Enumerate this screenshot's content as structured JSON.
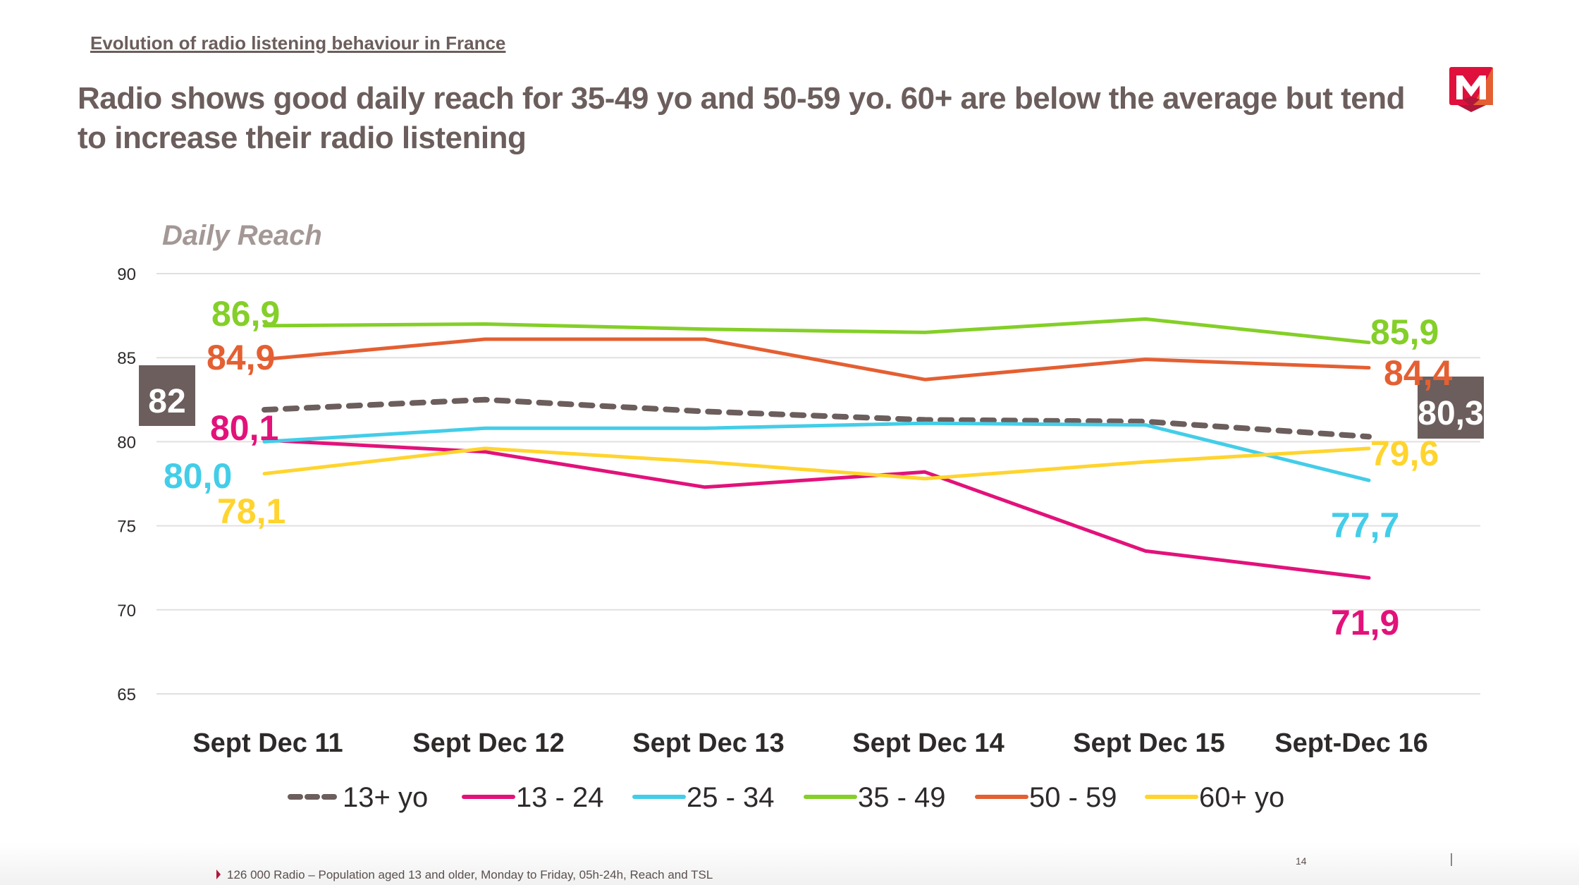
{
  "header": {
    "subtitle": "Evolution of radio listening behaviour in France",
    "title": "Radio shows good daily reach for 35-49 yo and 50-59 yo. 60+ are below the average but tend to increase their radio listening",
    "logo": "m-brand-logo-icon"
  },
  "colors": {
    "text": "#6b5e5c",
    "grid": "#e3dfdf",
    "box": "#6b5e5c",
    "logo_red": "#e0103c",
    "logo_dark_red": "#b0173a",
    "logo_orange": "#e45f32"
  },
  "chart_data": {
    "type": "line",
    "title": "Daily Reach",
    "xlabel": "",
    "ylabel": "Daily Reach",
    "ylim": [
      65,
      90
    ],
    "yticks": [
      65,
      70,
      75,
      80,
      85,
      90
    ],
    "grid": true,
    "legend_position": "bottom",
    "categories": [
      "Sept Dec 11",
      "Sept Dec 12",
      "Sept Dec 13",
      "Sept Dec 14",
      "Sept Dec 15",
      "Sept-Dec 16"
    ],
    "series": [
      {
        "name": "13+ yo",
        "color": "#6b5e5c",
        "dashed": true,
        "values": [
          81.9,
          82.5,
          81.8,
          81.3,
          81.2,
          80.3
        ],
        "start_label": "82",
        "end_label": "80,3",
        "boxed": true
      },
      {
        "name": "13 - 24",
        "color": "#e2127a",
        "dashed": false,
        "values": [
          80.1,
          79.4,
          77.3,
          78.2,
          73.5,
          71.9
        ],
        "start_label": "80,1",
        "end_label": "71,9"
      },
      {
        "name": "25 - 34",
        "color": "#43cde8",
        "dashed": false,
        "values": [
          80.0,
          80.8,
          80.8,
          81.1,
          81.0,
          77.7
        ],
        "start_label": "80,0",
        "end_label": "77,7"
      },
      {
        "name": "35 - 49",
        "color": "#84cf28",
        "dashed": false,
        "values": [
          86.9,
          87.0,
          86.7,
          86.5,
          87.3,
          85.9
        ],
        "start_label": "86,9",
        "end_label": "85,9"
      },
      {
        "name": "50 - 59",
        "color": "#e45f32",
        "dashed": false,
        "values": [
          84.9,
          86.1,
          86.1,
          83.7,
          84.9,
          84.4
        ],
        "start_label": "84,9",
        "end_label": "84,4"
      },
      {
        "name": "60+ yo",
        "color": "#ffd42e",
        "dashed": false,
        "values": [
          78.1,
          79.6,
          78.8,
          77.8,
          78.8,
          79.6
        ],
        "start_label": "78,1",
        "end_label": "79,6"
      }
    ]
  },
  "footer": {
    "footnote": "126 000 Radio – Population aged 13 and older, Monday to Friday, 05h-24h, Reach and TSL",
    "page_number": "14"
  }
}
